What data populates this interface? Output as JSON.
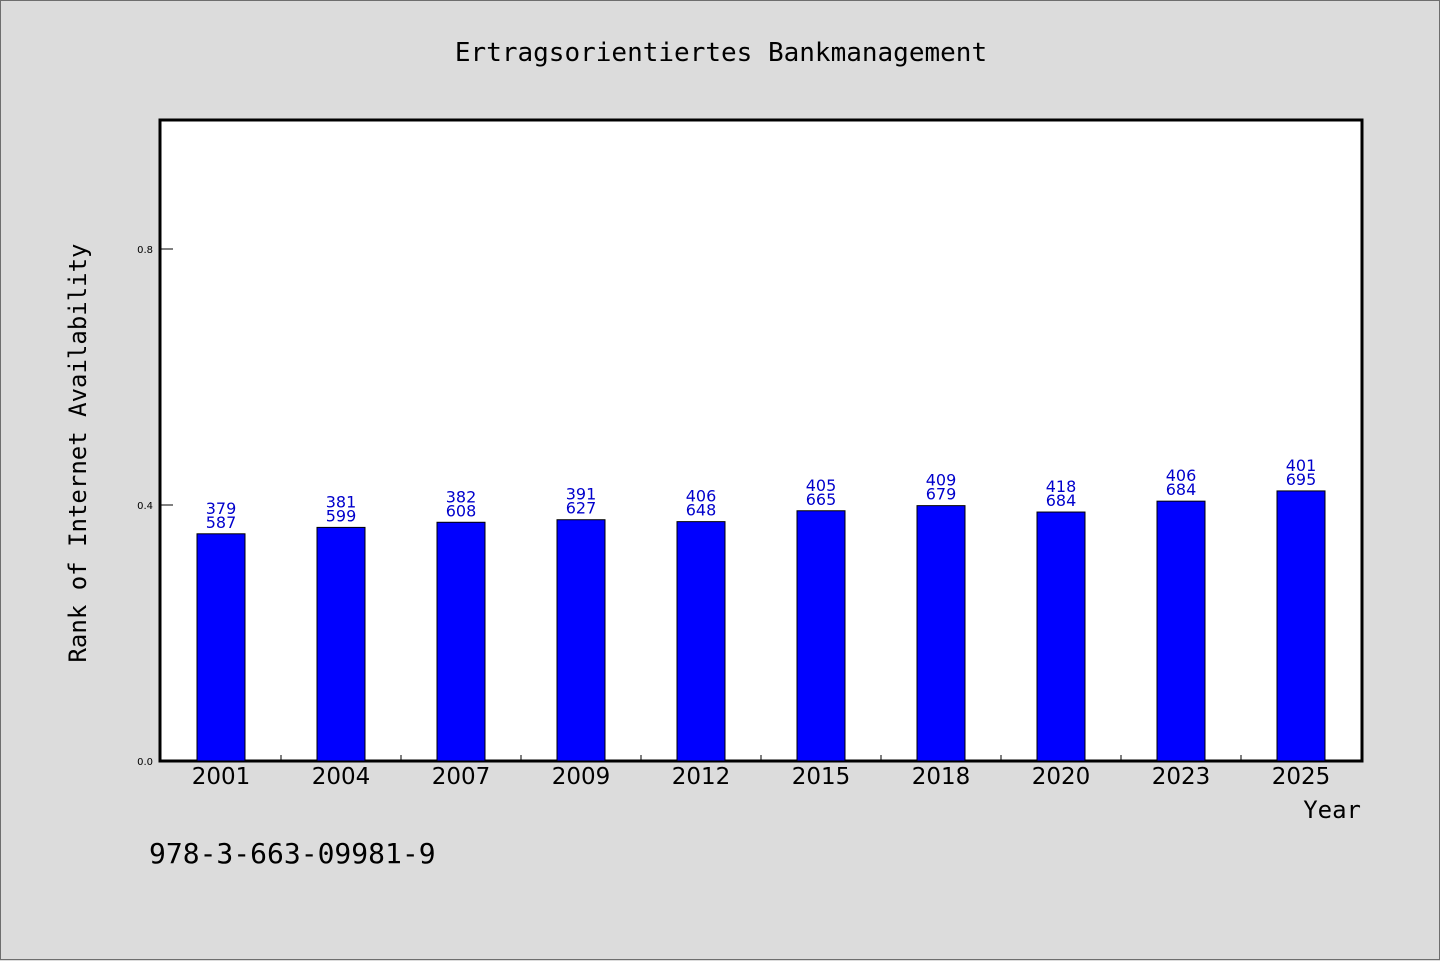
{
  "chart_data": {
    "type": "bar",
    "title": "Ertragsorientiertes Bankmanagement",
    "xlabel": "Year",
    "ylabel": "Rank of Internet Availability",
    "categories": [
      "2001",
      "2004",
      "2007",
      "2009",
      "2012",
      "2015",
      "2018",
      "2020",
      "2023",
      "2025"
    ],
    "values": [
      0.355,
      0.365,
      0.373,
      0.377,
      0.374,
      0.391,
      0.399,
      0.389,
      0.406,
      0.422
    ],
    "data_labels": [
      [
        "379",
        "587"
      ],
      [
        "381",
        "599"
      ],
      [
        "382",
        "608"
      ],
      [
        "391",
        "627"
      ],
      [
        "406",
        "648"
      ],
      [
        "405",
        "665"
      ],
      [
        "409",
        "679"
      ],
      [
        "418",
        "684"
      ],
      [
        "406",
        "684"
      ],
      [
        "401",
        "695"
      ]
    ],
    "ylim": [
      0,
      1.0
    ],
    "yticks": [
      0.0,
      0.4,
      0.8
    ],
    "ytick_labels": [
      "0.0",
      "0.4",
      "0.8"
    ],
    "bar_color": "#0000ff",
    "data_label_color": "#0000cc",
    "background_color": "#dcdcdc",
    "plot_background_color": "#ffffff",
    "grid": false,
    "legend": "none"
  },
  "footnote": "978-3-663-09981-9"
}
